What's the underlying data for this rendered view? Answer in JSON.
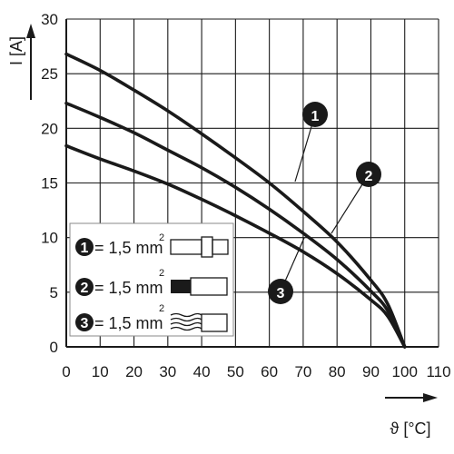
{
  "chart_data": {
    "type": "line",
    "xlabel": "ϑ [°C]",
    "ylabel": "I [A]",
    "xlim": [
      0,
      110
    ],
    "ylim": [
      0,
      30
    ],
    "x_ticks": [
      "0",
      "10",
      "20",
      "30",
      "40",
      "50",
      "60",
      "70",
      "80",
      "90",
      "100",
      "110"
    ],
    "y_ticks": [
      "0",
      "5",
      "10",
      "15",
      "20",
      "25",
      "30"
    ],
    "grid": true,
    "series": [
      {
        "name": "1",
        "x": [
          0,
          10,
          20,
          30,
          40,
          50,
          60,
          70,
          80,
          90,
          95,
          100
        ],
        "y": [
          26.8,
          25.3,
          23.5,
          21.6,
          19.5,
          17.3,
          15.0,
          12.4,
          9.6,
          6.1,
          3.9,
          0
        ]
      },
      {
        "name": "2",
        "x": [
          0,
          10,
          20,
          30,
          40,
          50,
          60,
          70,
          80,
          90,
          95,
          100
        ],
        "y": [
          22.3,
          21.0,
          19.6,
          18.0,
          16.4,
          14.6,
          12.6,
          10.4,
          8.0,
          5.1,
          3.3,
          0
        ]
      },
      {
        "name": "3",
        "x": [
          0,
          10,
          20,
          30,
          40,
          50,
          60,
          70,
          80,
          90,
          95,
          100
        ],
        "y": [
          18.4,
          17.2,
          16.1,
          14.9,
          13.5,
          12.0,
          10.4,
          8.7,
          6.7,
          4.3,
          2.8,
          0
        ]
      }
    ],
    "badges": [
      "1",
      "2",
      "3"
    ],
    "legend": {
      "placement": "bottom-left",
      "entries": [
        {
          "number": "1",
          "text": "= 1,5 mm",
          "superscript": "2"
        },
        {
          "number": "2",
          "text": "= 1,5 mm",
          "superscript": "2"
        },
        {
          "number": "3",
          "text": "= 1,5 mm",
          "superscript": "2"
        }
      ]
    }
  }
}
